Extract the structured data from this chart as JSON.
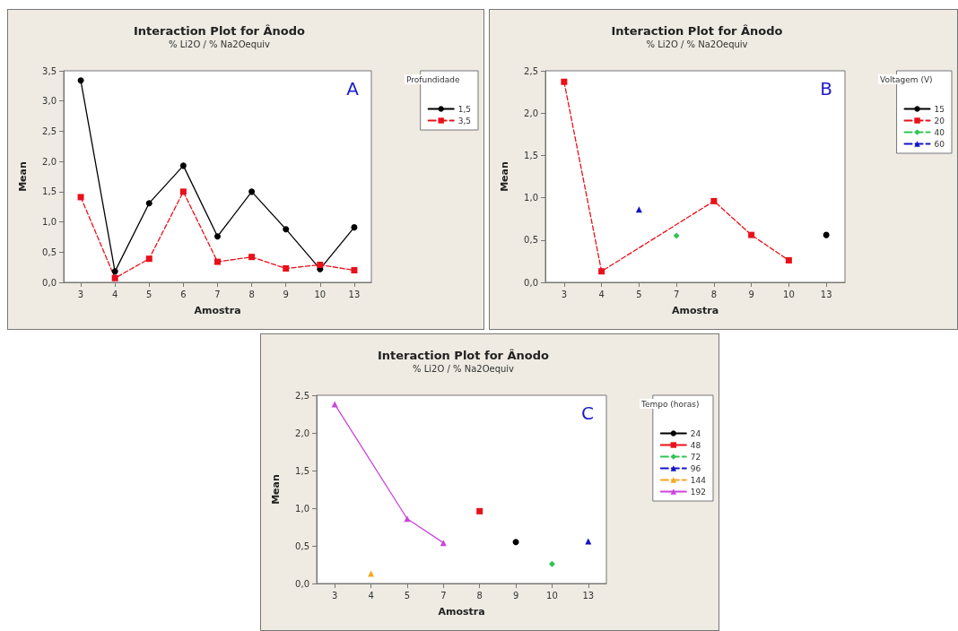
{
  "chart_data": [
    {
      "type": "line",
      "title": "Interaction Plot for Ânodo",
      "subtitle": "% Li2O / % Na2Oequiv",
      "xlabel": "Amostra",
      "ylabel": "Mean",
      "legend_title": "Profundidade",
      "legend": "top right",
      "grid": false,
      "annotations": [
        "A"
      ],
      "categories": [
        "3",
        "4",
        "5",
        "6",
        "7",
        "8",
        "9",
        "10",
        "13"
      ],
      "ylim": [
        0,
        3.5
      ],
      "yticks": [
        {
          "value": 0,
          "label": "0,0"
        },
        {
          "value": 0.5,
          "label": "0,5"
        },
        {
          "value": 1,
          "label": "1,0"
        },
        {
          "value": 1.5,
          "label": "1,5"
        },
        {
          "value": 2,
          "label": "2,0"
        },
        {
          "value": 2.5,
          "label": "2,5"
        },
        {
          "value": 3,
          "label": "3,0"
        },
        {
          "value": 3.5,
          "label": "3,5"
        }
      ],
      "series": [
        {
          "name": "1,5",
          "color": "#000000",
          "marker": "circle",
          "line_style": "solid",
          "values": [
            3.34,
            0.18,
            1.31,
            1.93,
            0.76,
            1.5,
            0.88,
            0.22,
            0.91
          ]
        },
        {
          "name": "3,5",
          "color": "#e8101a",
          "marker": "square",
          "line_style": "dashed",
          "values": [
            1.41,
            0.07,
            0.39,
            1.5,
            0.34,
            0.42,
            0.23,
            0.29,
            0.2
          ]
        }
      ]
    },
    {
      "type": "line",
      "title": "Interaction Plot for Ânodo",
      "subtitle": "% Li2O / % Na2Oequiv",
      "xlabel": "Amostra",
      "ylabel": "Mean",
      "legend_title": "Voltagem (V)",
      "legend": "top right",
      "grid": false,
      "annotations": [
        "B"
      ],
      "categories": [
        "3",
        "4",
        "5",
        "7",
        "8",
        "9",
        "10",
        "13"
      ],
      "ylim": [
        0,
        2.5
      ],
      "yticks": [
        {
          "value": 0,
          "label": "0,0"
        },
        {
          "value": 0.5,
          "label": "0,5"
        },
        {
          "value": 1,
          "label": "1,0"
        },
        {
          "value": 1.5,
          "label": "1,5"
        },
        {
          "value": 2,
          "label": "2,0"
        },
        {
          "value": 2.5,
          "label": "2,5"
        }
      ],
      "series": [
        {
          "name": "15",
          "color": "#000000",
          "marker": "circle",
          "line_style": "solid",
          "x": [
            "13"
          ],
          "values": [
            0.56
          ]
        },
        {
          "name": "20",
          "color": "#e8101a",
          "marker": "square",
          "line_style": "dashed",
          "x": [
            "3",
            "4",
            "8",
            "9",
            "10"
          ],
          "values": [
            2.37,
            0.13,
            0.96,
            0.56,
            0.26
          ]
        },
        {
          "name": "40",
          "color": "#33c455",
          "marker": "diamond",
          "line_style": "dashed",
          "x": [
            "7"
          ],
          "values": [
            0.55
          ]
        },
        {
          "name": "60",
          "color": "#1414c8",
          "marker": "triangle",
          "line_style": "dashed",
          "x": [
            "5"
          ],
          "values": [
            0.86
          ]
        }
      ]
    },
    {
      "type": "line",
      "title": "Interaction Plot for Ânodo",
      "subtitle": "% Li2O / % Na2Oequiv",
      "xlabel": "Amostra",
      "ylabel": "Mean",
      "legend_title": "Tempo (horas)",
      "legend": "top right",
      "grid": false,
      "annotations": [
        "C"
      ],
      "categories": [
        "3",
        "4",
        "5",
        "7",
        "8",
        "9",
        "10",
        "13"
      ],
      "ylim": [
        0,
        2.5
      ],
      "yticks": [
        {
          "value": 0,
          "label": "0,0"
        },
        {
          "value": 0.5,
          "label": "0,5"
        },
        {
          "value": 1,
          "label": "1,0"
        },
        {
          "value": 1.5,
          "label": "1,5"
        },
        {
          "value": 2,
          "label": "2,0"
        },
        {
          "value": 2.5,
          "label": "2,5"
        }
      ],
      "series": [
        {
          "name": "24",
          "color": "#000000",
          "marker": "circle",
          "line_style": "solid",
          "x": [
            "9"
          ],
          "values": [
            0.55
          ]
        },
        {
          "name": "48",
          "color": "#e8101a",
          "marker": "square",
          "line_style": "solid",
          "x": [
            "8"
          ],
          "values": [
            0.96
          ]
        },
        {
          "name": "72",
          "color": "#33c455",
          "marker": "diamond",
          "line_style": "dashed",
          "x": [
            "10"
          ],
          "values": [
            0.26
          ]
        },
        {
          "name": "96",
          "color": "#1414c8",
          "marker": "triangle",
          "line_style": "dashed",
          "x": [
            "13"
          ],
          "values": [
            0.56
          ]
        },
        {
          "name": "144",
          "color": "#f5a623",
          "marker": "triangle",
          "line_style": "dashed",
          "x": [
            "4"
          ],
          "values": [
            0.13
          ]
        },
        {
          "name": "192",
          "color": "#cc44dd",
          "marker": "triangle",
          "line_style": "solid",
          "x": [
            "3",
            "5",
            "7"
          ],
          "values": [
            2.38,
            0.86,
            0.54
          ]
        }
      ]
    }
  ]
}
